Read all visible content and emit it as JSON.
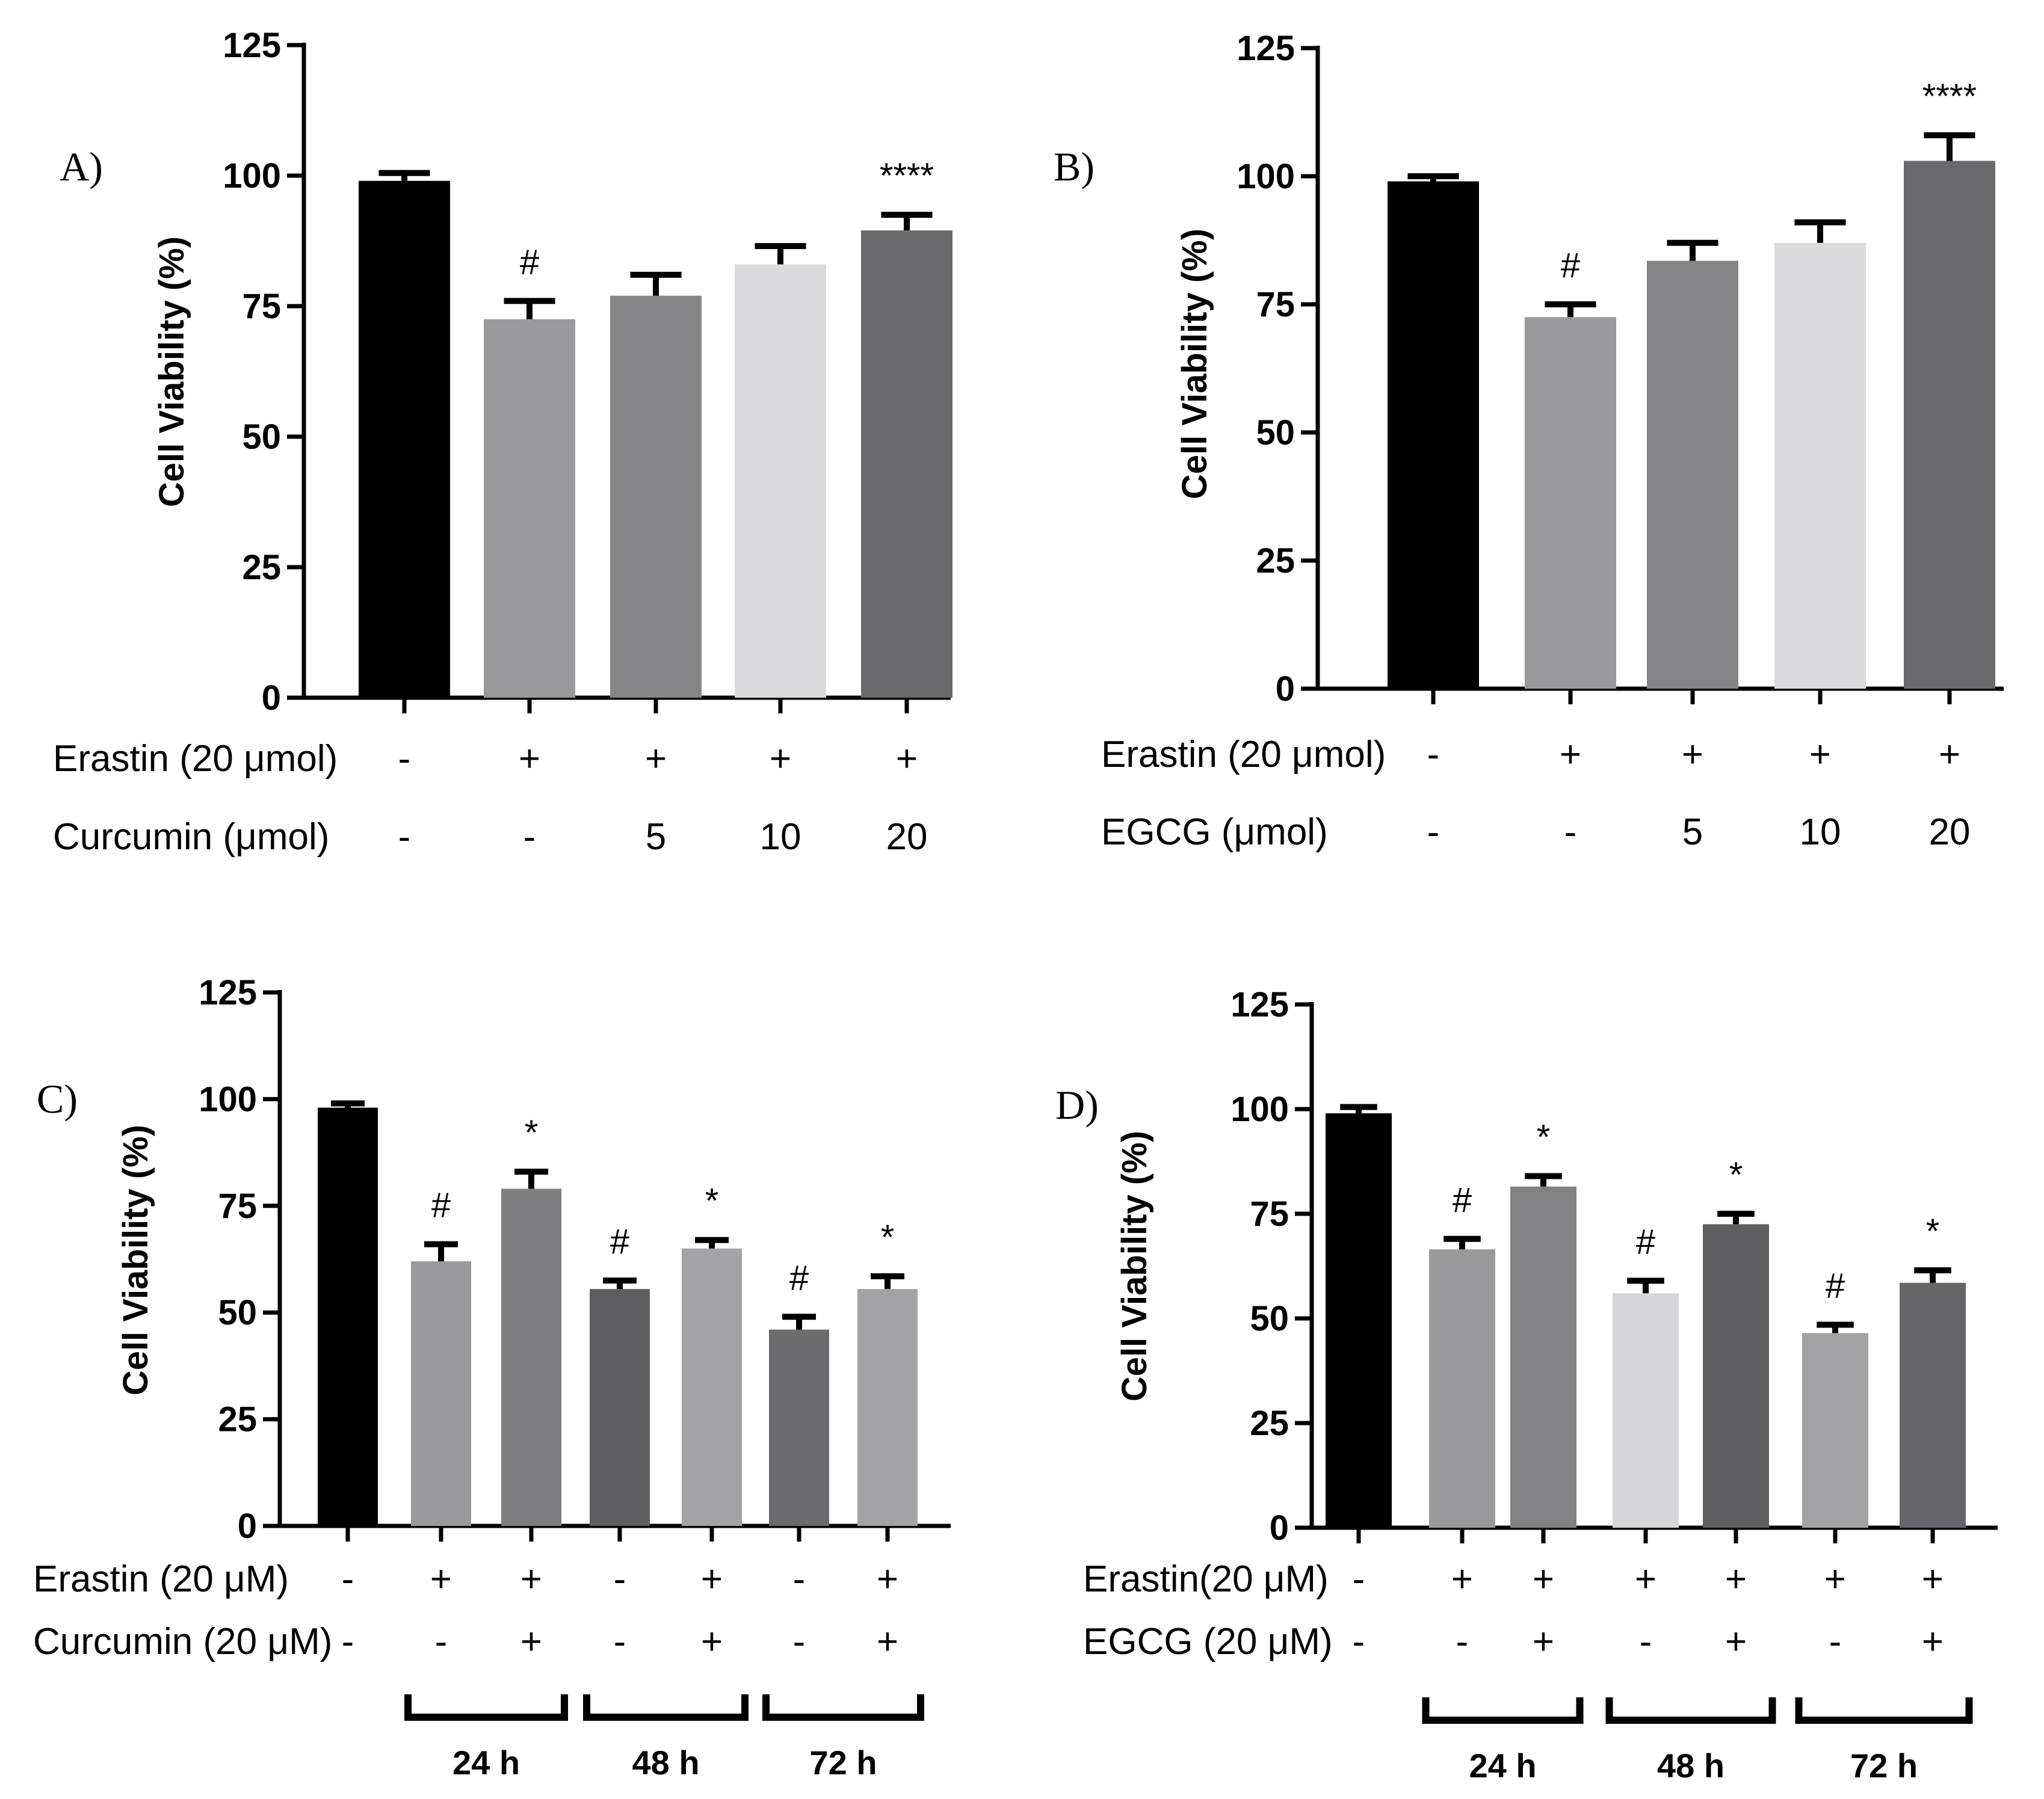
{
  "chart_data": [
    {
      "id": "A",
      "type": "bar",
      "panel_label": "A)",
      "ylabel": "Cell Viability (%)",
      "ylim": [
        0,
        125
      ],
      "yticks": [
        "0",
        "25",
        "50",
        "75",
        "100",
        "125"
      ],
      "values": [
        99,
        72.5,
        77,
        83,
        89.5
      ],
      "errors": [
        1.5,
        3.5,
        4,
        3.5,
        3
      ],
      "colors": [
        "#000000",
        "#9a9a9c",
        "#858587",
        "#dadadc",
        "#69696b"
      ],
      "sig": [
        "",
        "#",
        "",
        "",
        "****"
      ],
      "condition_rows": [
        {
          "label": "Erastin (20 μmol)",
          "marks": [
            "-",
            "+",
            "+",
            "+",
            "+"
          ]
        },
        {
          "label": "Curcumin (μmol)",
          "marks": [
            "-",
            "-",
            "5",
            "10",
            "20"
          ]
        }
      ],
      "groups": []
    },
    {
      "id": "B",
      "type": "bar",
      "panel_label": "B)",
      "ylabel": "Cell Viability  (%)",
      "ylim": [
        0,
        125
      ],
      "yticks": [
        "0",
        "25",
        "50",
        "75",
        "100",
        "125"
      ],
      "values": [
        99,
        72.5,
        83.5,
        87,
        103
      ],
      "errors": [
        1,
        2.5,
        3.5,
        4,
        5
      ],
      "colors": [
        "#000000",
        "#9a9a9c",
        "#858587",
        "#dadadc",
        "#69696b"
      ],
      "sig": [
        "",
        "#",
        "",
        "",
        "****"
      ],
      "condition_rows": [
        {
          "label": "Erastin (20 μmol)",
          "marks": [
            "-",
            "+",
            "+",
            "+",
            "+"
          ]
        },
        {
          "label": "EGCG  (μmol)",
          "marks": [
            "-",
            "-",
            "5",
            "10",
            "20"
          ]
        }
      ],
      "groups": []
    },
    {
      "id": "C",
      "type": "bar",
      "panel_label": "C)",
      "ylabel": "Cell Viability (%)",
      "ylim": [
        0,
        125
      ],
      "yticks": [
        "0",
        "25",
        "50",
        "75",
        "100",
        "125"
      ],
      "values": [
        98,
        62,
        79,
        55.5,
        65,
        46,
        55.5
      ],
      "errors": [
        1,
        4,
        4,
        2,
        2,
        3,
        3
      ],
      "colors": [
        "#000000",
        "#9a9a9c",
        "#7e7e80",
        "#5e5e60",
        "#a3a3a5",
        "#6c6c6e",
        "#a3a3a5"
      ],
      "sig": [
        "",
        "#",
        "*",
        "#",
        "*",
        "#",
        "*"
      ],
      "condition_rows": [
        {
          "label": "Erastin (20 μM)",
          "marks": [
            "-",
            "+",
            "+",
            "-",
            "+",
            "-",
            "+"
          ]
        },
        {
          "label": "Curcumin (20 μM)",
          "marks": [
            "-",
            "-",
            "+",
            "-",
            "+",
            "-",
            "+"
          ]
        }
      ],
      "groups": [
        {
          "label": "24 h",
          "from": 1,
          "to": 2
        },
        {
          "label": "48 h",
          "from": 3,
          "to": 4
        },
        {
          "label": "72 h",
          "from": 5,
          "to": 6
        }
      ]
    },
    {
      "id": "D",
      "type": "bar",
      "panel_label": "D)",
      "ylabel": "Cell Viability (%)",
      "ylim": [
        0,
        125
      ],
      "yticks": [
        "0",
        "25",
        "50",
        "75",
        "100",
        "125"
      ],
      "values": [
        99,
        66.5,
        81.5,
        56,
        72.5,
        46.5,
        58.5
      ],
      "errors": [
        1.5,
        2.5,
        2.5,
        3,
        2.5,
        2,
        3
      ],
      "colors": [
        "#000000",
        "#9a9a9c",
        "#828284",
        "#d6d6d8",
        "#606062",
        "#a3a3a5",
        "#66666a"
      ],
      "sig": [
        "",
        "#",
        "*",
        "#",
        "*",
        "#",
        "*"
      ],
      "condition_rows": [
        {
          "label": "Erastin(20 μM)",
          "marks": [
            "-",
            "+",
            "+",
            "+",
            "+",
            "+",
            "+"
          ]
        },
        {
          "label": "EGCG (20 μM)",
          "marks": [
            "-",
            "-",
            "+",
            "-",
            "+",
            "-",
            "+"
          ]
        }
      ],
      "groups": [
        {
          "label": "24 h",
          "from": 1,
          "to": 2
        },
        {
          "label": "48 h",
          "from": 3,
          "to": 4
        },
        {
          "label": "72 h",
          "from": 5,
          "to": 6
        }
      ]
    }
  ]
}
